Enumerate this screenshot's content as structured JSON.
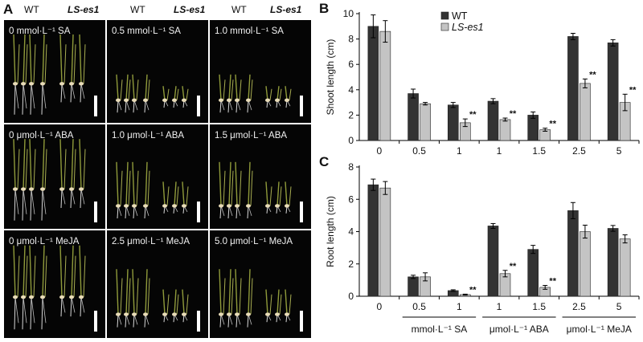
{
  "panel_a": {
    "letter": "A",
    "headers": [
      {
        "wt": "WT",
        "mut": "LS-es1"
      },
      {
        "wt": "WT",
        "mut": "LS-es1"
      },
      {
        "wt": "WT",
        "mut": "LS-es1"
      }
    ],
    "photos": [
      {
        "label": "0 mmol·L⁻¹ SA",
        "treat": "control"
      },
      {
        "label": "0.5 mmol·L⁻¹ SA",
        "treat": "short"
      },
      {
        "label": "1.0  mmol·L⁻¹ SA",
        "treat": "short"
      },
      {
        "label": "0 μmol·L⁻¹  ABA",
        "treat": "control"
      },
      {
        "label": "1.0 μmol·L⁻¹  ABA",
        "treat": "mid"
      },
      {
        "label": "1.5 μmol·L⁻¹  ABA",
        "treat": "mid"
      },
      {
        "label": "0 μmol·L⁻¹  MeJA",
        "treat": "control"
      },
      {
        "label": "2.5 μmol·L⁻¹  MeJA",
        "treat": "mid"
      },
      {
        "label": "5.0 μmol·L⁻¹  MeJA",
        "treat": "mid"
      }
    ]
  },
  "chart_data": [
    {
      "panel": "B",
      "type": "bar",
      "ylabel": "Shoot length (cm)",
      "ylim": [
        0,
        10
      ],
      "yticks": [
        0,
        2,
        4,
        6,
        8,
        10
      ],
      "categories": [
        "0",
        "0.5",
        "1",
        "1",
        "1.5",
        "2.5",
        "5"
      ],
      "series": [
        {
          "name": "WT",
          "color": "#333333",
          "values": [
            9.0,
            3.7,
            2.8,
            3.1,
            2.0,
            8.2,
            7.7
          ],
          "errors": [
            0.9,
            0.35,
            0.2,
            0.2,
            0.25,
            0.25,
            0.25
          ]
        },
        {
          "name": "LS-es1",
          "color": "#c4c4c4",
          "values": [
            8.6,
            2.9,
            1.4,
            1.65,
            0.85,
            4.5,
            3.0
          ],
          "errors": [
            0.85,
            0.1,
            0.3,
            0.12,
            0.12,
            0.35,
            0.65
          ]
        }
      ],
      "significance": [
        "",
        "",
        "**",
        "**",
        "**",
        "**",
        "**"
      ],
      "legend_position": "top-left"
    },
    {
      "panel": "C",
      "type": "bar",
      "ylabel": "Root  length (cm)",
      "ylim": [
        0,
        8
      ],
      "yticks": [
        0,
        2,
        4,
        6,
        8
      ],
      "categories": [
        "0",
        "0.5",
        "1",
        "1",
        "1.5",
        "2.5",
        "5"
      ],
      "series": [
        {
          "name": "WT",
          "color": "#333333",
          "values": [
            6.9,
            1.2,
            0.35,
            4.35,
            2.9,
            5.3,
            4.2
          ],
          "errors": [
            0.35,
            0.1,
            0.05,
            0.15,
            0.25,
            0.5,
            0.18
          ]
        },
        {
          "name": "LS-es1",
          "color": "#c4c4c4",
          "values": [
            6.7,
            1.2,
            0.1,
            1.4,
            0.55,
            4.0,
            3.55
          ],
          "errors": [
            0.4,
            0.25,
            0.03,
            0.2,
            0.12,
            0.4,
            0.25
          ]
        }
      ],
      "significance": [
        "",
        "",
        "**",
        "**",
        "**",
        "",
        ""
      ],
      "groups": [
        {
          "label": "mmol·L⁻¹ SA",
          "from": 1,
          "to": 2
        },
        {
          "label": "μmol·L⁻¹ ABA",
          "from": 3,
          "to": 4
        },
        {
          "label": "μmol·L⁻¹ MeJA",
          "from": 5,
          "to": 6
        }
      ]
    }
  ]
}
